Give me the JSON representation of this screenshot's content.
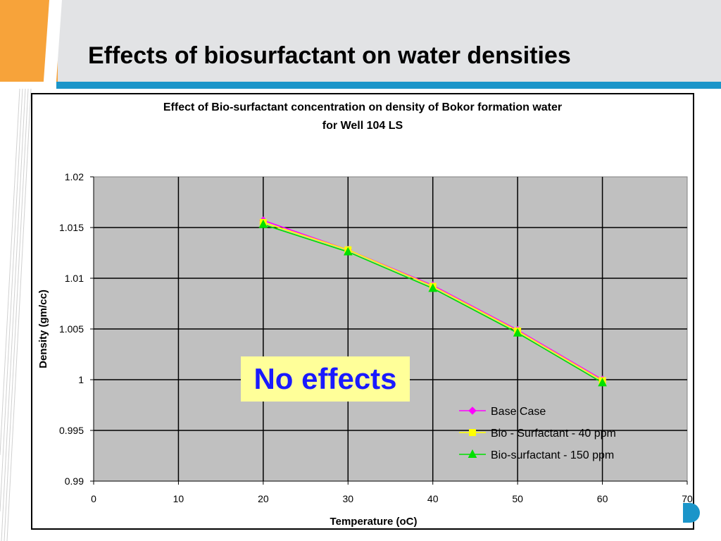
{
  "slide": {
    "title": "Effects of biosurfactant on water densities",
    "colors": {
      "header_band": "#e2e3e5",
      "accent_orange": "#f7a33a",
      "rule_blue": "#1b95c9"
    }
  },
  "overlay": {
    "text": "No effects",
    "background": "#ffff99",
    "color": "#1a1aff"
  },
  "chart_data": {
    "type": "line",
    "title_lines": [
      "Effect of Bio-surfactant concentration on density of Bokor formation water",
      "for Well 104 LS"
    ],
    "xlabel": "Temperature (oC)",
    "ylabel": "Density (gm/cc)",
    "xlim": [
      0,
      70
    ],
    "ylim": [
      0.99,
      1.02
    ],
    "x_ticks": [
      "0",
      "10",
      "20",
      "30",
      "40",
      "50",
      "60",
      "70"
    ],
    "y_ticks": [
      "0.99",
      "0.995",
      "1",
      "1.005",
      "1.01",
      "1.015",
      "1.02"
    ],
    "grid": true,
    "plot_background": "#c0c0c0",
    "legend_position": "bottom-right",
    "x": [
      20,
      30,
      40,
      50,
      60
    ],
    "series": [
      {
        "name": "Base Case",
        "color": "#ff00ff",
        "marker": "diamond",
        "values": [
          1.0157,
          1.0128,
          1.0093,
          1.0049,
          1.0
        ]
      },
      {
        "name": "Bio - Surfactant - 40 ppm",
        "color": "#ffff00",
        "marker": "square",
        "values": [
          1.0155,
          1.0128,
          1.0092,
          1.0048,
          0.9999
        ]
      },
      {
        "name": "Bio-surfactant - 150 ppm",
        "color": "#00e000",
        "marker": "triangle",
        "values": [
          1.0153,
          1.0126,
          1.009,
          1.0046,
          0.9997
        ]
      }
    ]
  }
}
